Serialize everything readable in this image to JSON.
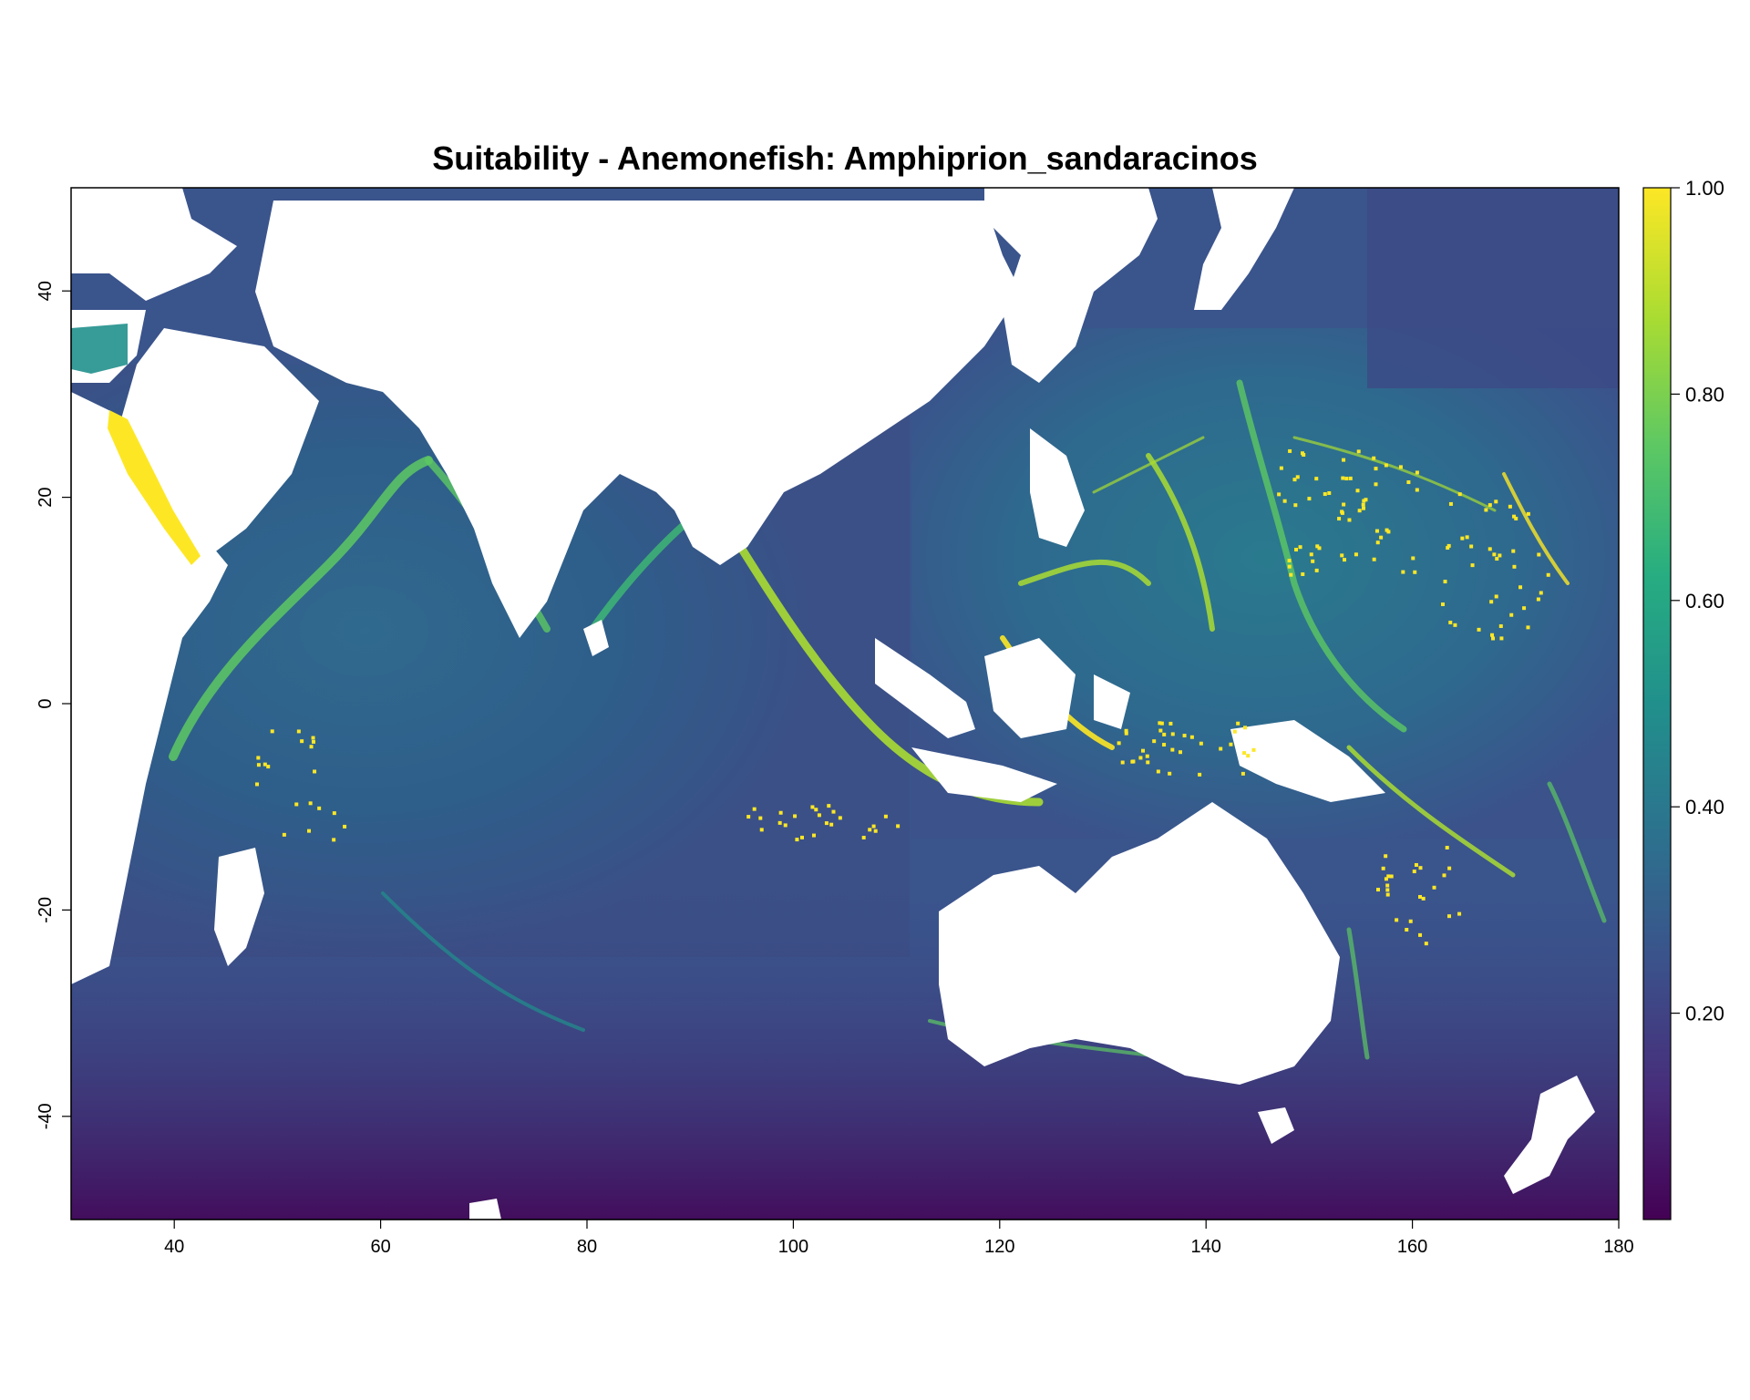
{
  "chart_data": {
    "type": "heatmap",
    "title": "Suitability - Anemonefish: Amphiprion_sandaracinos",
    "xlabel": "",
    "ylabel": "",
    "xlim": [
      30,
      180
    ],
    "ylim": [
      -50,
      50
    ],
    "x_ticks": [
      "40",
      "60",
      "80",
      "100",
      "120",
      "140",
      "160",
      "180"
    ],
    "x_tick_values": [
      40,
      60,
      80,
      100,
      120,
      140,
      160,
      180
    ],
    "y_ticks": [
      "40",
      "20",
      "0",
      "-20",
      "-40"
    ],
    "y_tick_values": [
      40,
      20,
      0,
      -20,
      -40
    ],
    "legend": {
      "position": "right",
      "min": 0,
      "max": 1,
      "ticks": [
        "0.20",
        "0.40",
        "0.60",
        "0.80",
        "1.00"
      ],
      "tick_values": [
        0.2,
        0.4,
        0.6,
        0.8,
        1.0
      ]
    },
    "colormap": "viridis",
    "colors": {
      "low": "#440154",
      "mid_low": "#3b528b",
      "mid": "#21908c",
      "mid_high": "#5dc863",
      "high": "#fde725",
      "land": "#ffffff"
    },
    "grid": false
  }
}
